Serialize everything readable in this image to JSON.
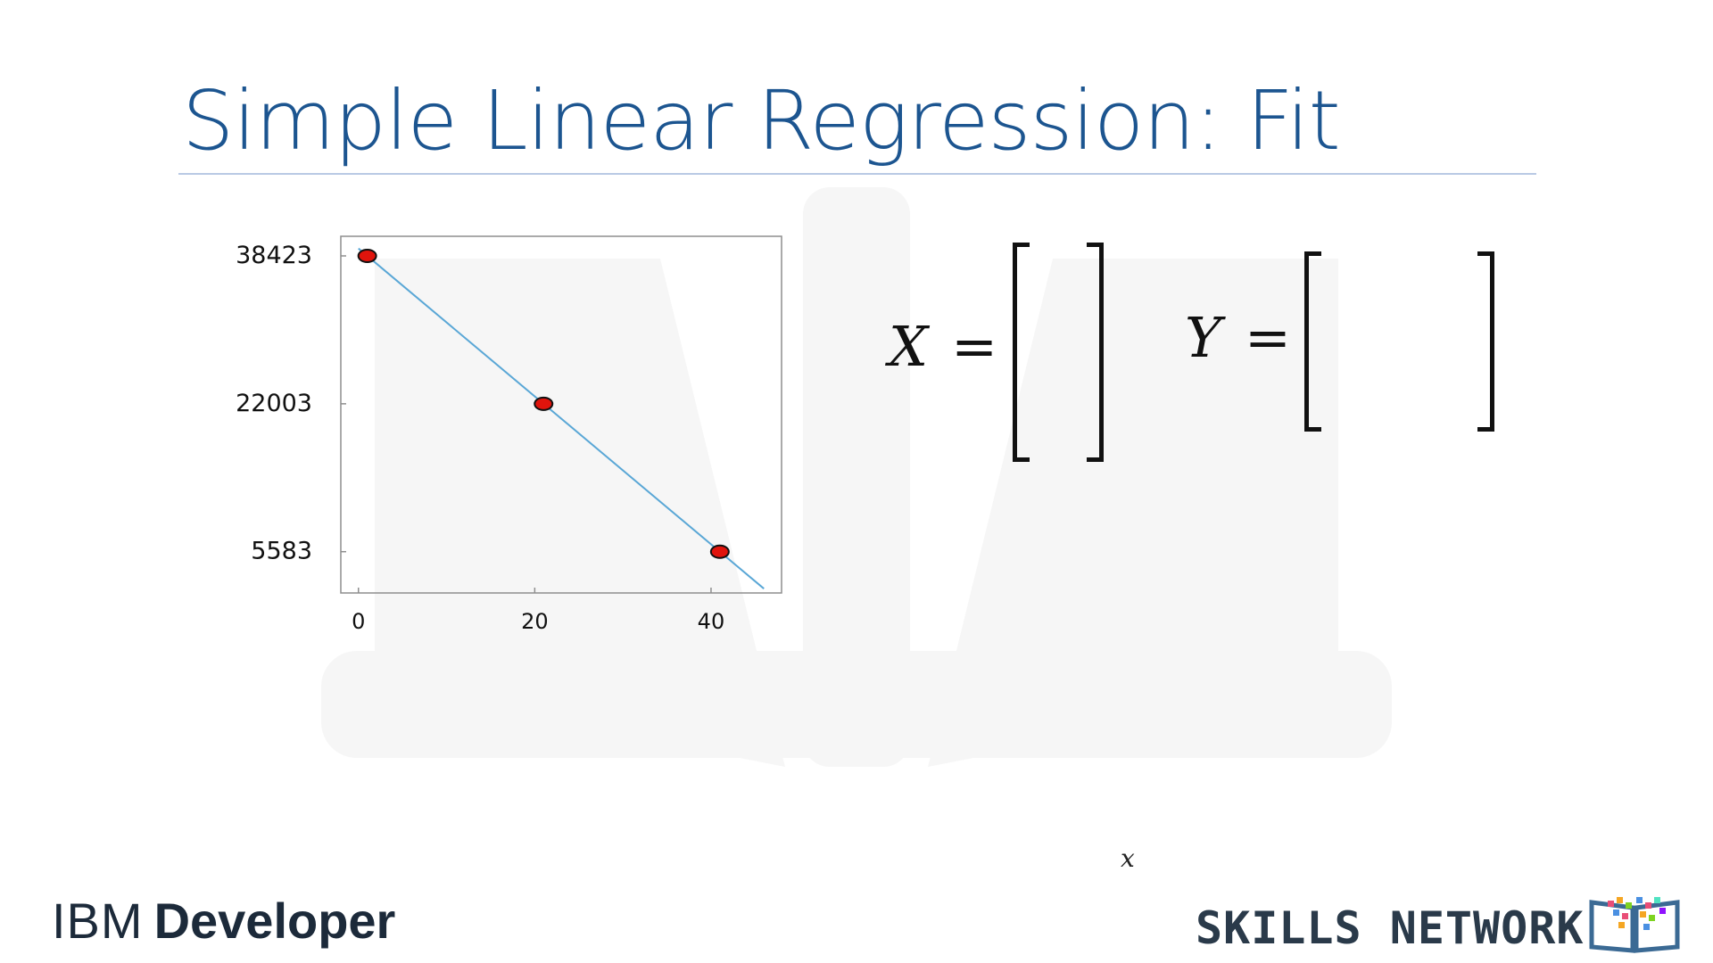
{
  "slide": {
    "title": "Simple Linear Regression: Fit"
  },
  "chart_data": {
    "type": "scatter",
    "points": [
      {
        "x": 1,
        "y": 38423
      },
      {
        "x": 21,
        "y": 22003
      },
      {
        "x": 41,
        "y": 5583
      }
    ],
    "fit_line": {
      "from": {
        "x": 0,
        "y": 39244
      },
      "to": {
        "x": 46,
        "y": 1476
      }
    },
    "x_ticks": [
      0,
      20,
      40
    ],
    "y_ticks": [
      38423,
      22003,
      5583
    ],
    "xlim": [
      -2,
      48
    ],
    "ylim": [
      1000,
      40600
    ],
    "colors": {
      "point_fill": "#e0140c",
      "line": "#5aa7d6"
    }
  },
  "equations": {
    "x_matrix_label": "X",
    "y_matrix_label": "Y",
    "equals": "="
  },
  "stray_label": "x",
  "footer": {
    "ibm_text": "IBM",
    "developer_text": "Developer",
    "skills_network": "SKILLS NETWORK"
  },
  "icons": {
    "skills_network": "open-book-pixel-icon",
    "watermark": "open-book-icon"
  }
}
